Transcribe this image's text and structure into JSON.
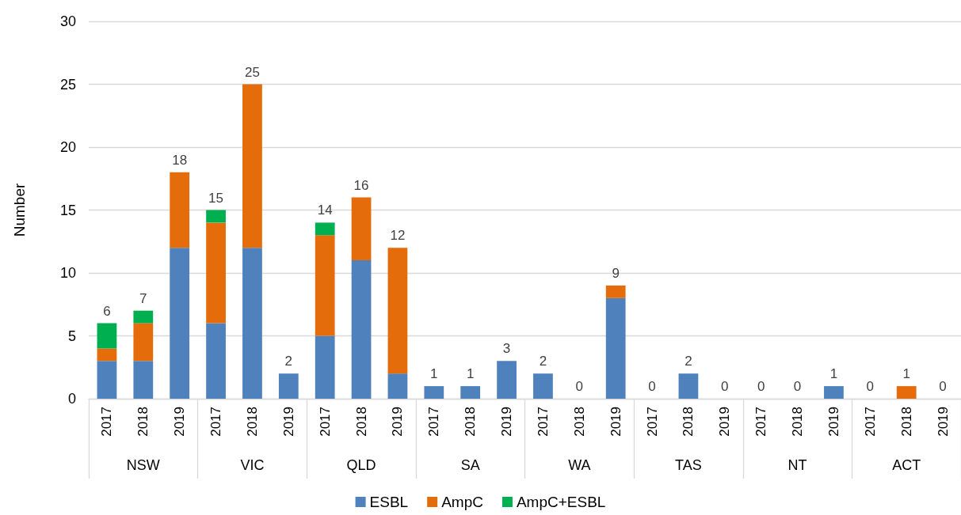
{
  "chart_data": {
    "type": "bar",
    "stacked": true,
    "ylabel": "Number",
    "categories": [
      "2017",
      "2018",
      "2019",
      "2017",
      "2018",
      "2019",
      "2017",
      "2018",
      "2019",
      "2017",
      "2018",
      "2019",
      "2017",
      "2018",
      "2019",
      "2017",
      "2018",
      "2019",
      "2017",
      "2018",
      "2019",
      "2017",
      "2018",
      "2019"
    ],
    "annotations": [
      "NSW",
      "VIC",
      "QLD",
      "SA",
      "WA",
      "TAS",
      "NT",
      "ACT"
    ],
    "series": [
      {
        "name": "ESBL",
        "color": "#4f81bd",
        "values": [
          3,
          3,
          12,
          6,
          12,
          2,
          5,
          11,
          2,
          1,
          1,
          3,
          2,
          0,
          8,
          0,
          2,
          0,
          0,
          0,
          1,
          0,
          0,
          0
        ]
      },
      {
        "name": "AmpC",
        "color": "#e46c0a",
        "values": [
          1,
          3,
          6,
          8,
          13,
          0,
          8,
          5,
          10,
          0,
          0,
          0,
          0,
          0,
          1,
          0,
          0,
          0,
          0,
          0,
          0,
          0,
          1,
          0
        ]
      },
      {
        "name": "AmpC+ESBL",
        "color": "#00b050",
        "values": [
          2,
          1,
          0,
          1,
          0,
          0,
          1,
          0,
          0,
          0,
          0,
          0,
          0,
          0,
          0,
          0,
          0,
          0,
          0,
          0,
          0,
          0,
          0,
          0
        ]
      }
    ],
    "totals": [
      "6",
      "7",
      "18",
      "15",
      "25",
      "2",
      "14",
      "16",
      "12",
      "1",
      "1",
      "3",
      "2",
      "0",
      "9",
      "0",
      "2",
      "0",
      "0",
      "0",
      "1",
      "0",
      "1",
      "0"
    ],
    "ylim": [
      0,
      30
    ],
    "yticks": [
      0,
      5,
      10,
      15,
      20,
      25,
      30
    ],
    "grid": "y",
    "legend": "bottom"
  }
}
